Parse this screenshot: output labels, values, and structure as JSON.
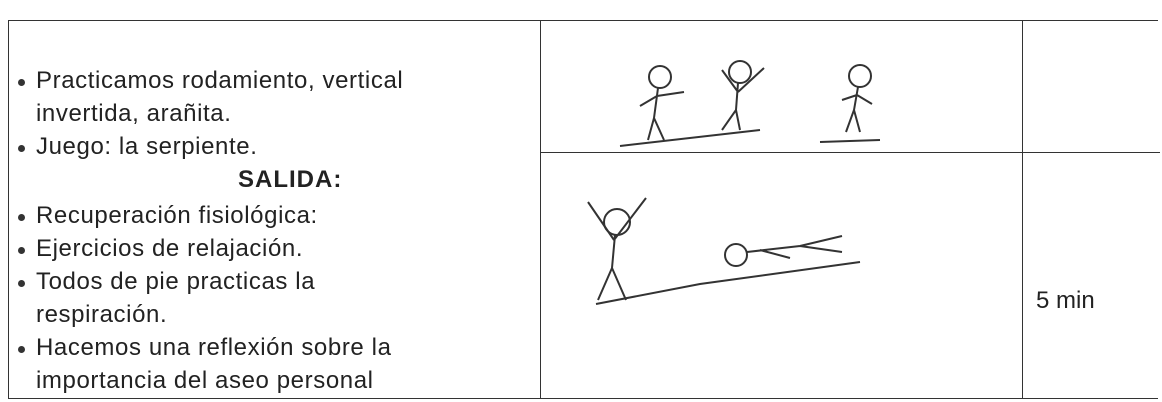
{
  "activities": {
    "items_1": [
      "Practicamos rodamiento, vertical invertida, arañita.",
      "Juego: la serpiente."
    ],
    "heading": "SALIDA:",
    "items_2": [
      "Recuperación fisiológica:",
      "Ejercicios de relajación.",
      "Todos de pie practicas la respiración.",
      "Hacemos una reflexión sobre la importancia del aseo personal"
    ]
  },
  "time": "5 min"
}
